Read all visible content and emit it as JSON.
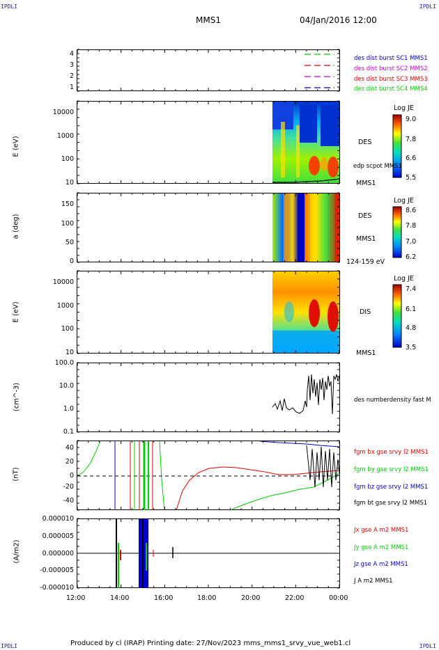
{
  "corners": {
    "tl": "IPDLI",
    "tr": "IPDLI",
    "bl": "IPDLI",
    "br": "IPDLI"
  },
  "header": {
    "spacecraft": "MMS1",
    "datetime": "04/Jan/2016 12:00"
  },
  "footer": {
    "text": "Produced by cl (IRAP)   Printing date: 27/Nov/2023   mms_mms1_srvy_vue_web1.cl"
  },
  "colors": {
    "blue": "#0000cc",
    "red": "#dd0000",
    "green": "#00cc00",
    "magenta": "#cc00cc",
    "black": "#000000"
  },
  "panel1": {
    "legend": [
      {
        "label": "des dist burst SC1 MMS1",
        "color": "#0000cc"
      },
      {
        "label": "des dist burst SC2 MMS2",
        "color": "#cc00cc"
      },
      {
        "label": "des dist burst SC3 MMS3",
        "color": "#dd0000"
      },
      {
        "label": "des dist burst SC4 MMS4",
        "color": "#00cc00"
      }
    ],
    "ticks": [
      "1",
      "2",
      "3",
      "4"
    ]
  },
  "panel2": {
    "ylabel": "E (eV)",
    "ticks": [
      "10",
      "100",
      "1000",
      "10000"
    ],
    "label": "DES",
    "sub": "edp scpot MMS1",
    "bottom": "MMS1",
    "cbar": {
      "title": "Log JE",
      "ticks": [
        "9.0",
        "7.8",
        "6.6",
        "5.5"
      ]
    }
  },
  "panel3": {
    "ylabel": "a (deg)",
    "ticks": [
      "0",
      "50",
      "100",
      "150"
    ],
    "label": "DES",
    "sub": "MMS1",
    "bottom": "124-159 eV",
    "cbar": {
      "title": "Log JE",
      "ticks": [
        "8.6",
        "7.8",
        "7.0",
        "6.2"
      ]
    }
  },
  "panel4": {
    "ylabel": "E (eV)",
    "ticks": [
      "10",
      "100",
      "1000",
      "10000"
    ],
    "label": "DIS",
    "bottom": "MMS1",
    "cbar": {
      "title": "Log JE",
      "ticks": [
        "7.4",
        "6.1",
        "4.8",
        "3.5"
      ]
    }
  },
  "panel5": {
    "ylabel": "(cm^-3)",
    "ticks": [
      "0.1",
      "1.0",
      "10.0",
      "100.0"
    ],
    "label": "des numberdensity fast M"
  },
  "panel6": {
    "ylabel": "(nT)",
    "ticks": [
      "-40",
      "-20",
      "0",
      "20",
      "40"
    ],
    "legend": [
      {
        "label": "fgm bx gse srvy l2 MMS1",
        "color": "#dd0000"
      },
      {
        "label": "fgm by gse srvy l2 MMS1",
        "color": "#00cc00"
      },
      {
        "label": "fgm bz gse srvy l2 MMS1",
        "color": "#0000cc"
      },
      {
        "label": "fgm bt gse srvy l2 MMS1",
        "color": "#000000"
      }
    ]
  },
  "panel7": {
    "ylabel": "(A/m2)",
    "ticks": [
      "-0.000010",
      "-0.000005",
      "0.000000",
      "0.000005",
      "0.000010"
    ],
    "legend": [
      {
        "label": "Jx gse A m2 MMS1",
        "color": "#dd0000"
      },
      {
        "label": "Jy gse A m2 MMS1",
        "color": "#00cc00"
      },
      {
        "label": "Jz gse A m2 MMS1",
        "color": "#0000cc"
      },
      {
        "label": "J A m2 MMS1",
        "color": "#000000"
      }
    ]
  },
  "xaxis": {
    "ticks": [
      "12:00",
      "14:00",
      "16:00",
      "18:00",
      "20:00",
      "22:00",
      "00:00"
    ]
  },
  "chart_data": {
    "type": "line",
    "x_range": [
      "12:00",
      "00:00"
    ],
    "density_cm3": {
      "x": [
        "21:00",
        "21:30",
        "22:00",
        "22:30",
        "23:00",
        "23:30",
        "00:00"
      ],
      "y": [
        1.3,
        1.1,
        0.8,
        1.5,
        15,
        10,
        25
      ],
      "ylim": [
        0.1,
        100
      ],
      "scale": "log"
    },
    "magnetic_field_nT": {
      "ylim": [
        -50,
        50
      ],
      "bx": {
        "x": [
          "12:00",
          "16:30",
          "17:30",
          "18:30",
          "20:00",
          "22:00",
          "00:00"
        ],
        "y": [
          -50,
          -50,
          8,
          12,
          10,
          5,
          5
        ]
      },
      "by": {
        "x": [
          "12:00",
          "13:00",
          "19:00",
          "21:00",
          "22:30",
          "00:00"
        ],
        "y": [
          0,
          50,
          -50,
          -40,
          -30,
          0
        ]
      }
    }
  }
}
